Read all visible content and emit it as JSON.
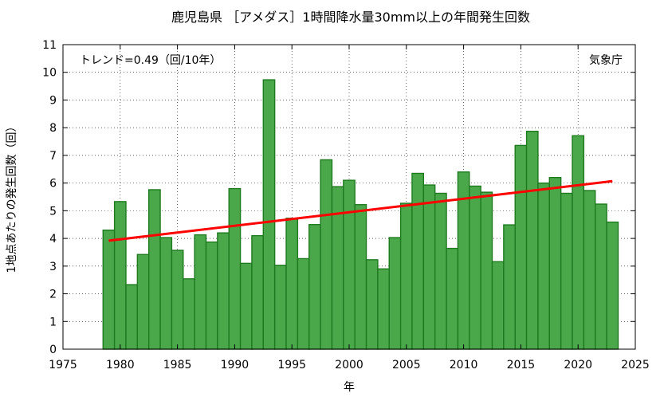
{
  "chart_data": {
    "type": "bar",
    "title": "鹿児島県 ［アメダス］1時間降水量30mm以上の年間発生回数",
    "xlabel": "年",
    "ylabel": "1地点あたりの発生回数（回）",
    "trend_text": "トレンド=0.49（回/10年）",
    "source_text": "気象庁",
    "xlim": [
      1975,
      2025
    ],
    "ylim": [
      0,
      11
    ],
    "x_ticks": [
      1975,
      1980,
      1985,
      1990,
      1995,
      2000,
      2005,
      2010,
      2015,
      2020,
      2025
    ],
    "y_ticks": [
      0,
      1,
      2,
      3,
      4,
      5,
      6,
      7,
      8,
      9,
      10,
      11
    ],
    "grid": true,
    "bar_color": "#4aa84a",
    "bar_edge_color": "#1f7a1f",
    "trend_color": "#ff0000",
    "x": [
      1979,
      1980,
      1981,
      1982,
      1983,
      1984,
      1985,
      1986,
      1987,
      1988,
      1989,
      1990,
      1991,
      1992,
      1993,
      1994,
      1995,
      1996,
      1997,
      1998,
      1999,
      2000,
      2001,
      2002,
      2003,
      2004,
      2005,
      2006,
      2007,
      2008,
      2009,
      2010,
      2011,
      2012,
      2013,
      2014,
      2015,
      2016,
      2017,
      2018,
      2019,
      2020,
      2021,
      2022,
      2023
    ],
    "values": [
      4.3,
      5.33,
      2.33,
      3.42,
      5.76,
      4.03,
      3.57,
      2.54,
      4.13,
      3.87,
      4.2,
      5.8,
      3.1,
      4.1,
      9.73,
      3.03,
      4.73,
      3.27,
      4.5,
      6.84,
      5.87,
      6.1,
      5.22,
      3.23,
      2.9,
      4.03,
      5.27,
      6.35,
      5.93,
      5.63,
      3.64,
      6.4,
      5.89,
      5.67,
      3.16,
      4.49,
      7.36,
      7.87,
      6.0,
      6.2,
      5.63,
      7.71,
      5.73,
      5.24,
      4.59
    ],
    "trend": {
      "x": [
        1979,
        2023
      ],
      "y": [
        3.92,
        6.07
      ]
    }
  }
}
